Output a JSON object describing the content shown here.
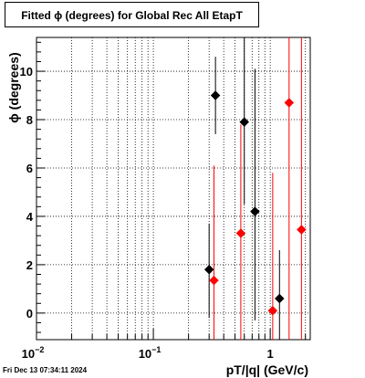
{
  "chart_data": {
    "type": "scatter",
    "title": "Fitted ϕ (degrees) for Global Rec All EtapT",
    "xlabel": "pT/|q| (GeV/c)",
    "ylabel": "ϕ (degrees)",
    "x_scale": "log",
    "xlim": [
      0.01,
      2.2
    ],
    "ylim": [
      -1.1,
      11.4
    ],
    "x_ticks": [
      {
        "value": 0.01,
        "base": "10",
        "exp": "−2"
      },
      {
        "value": 0.1,
        "base": "10",
        "exp": "−1"
      },
      {
        "value": 1,
        "base": "1",
        "exp": ""
      }
    ],
    "y_ticks": [
      0,
      2,
      4,
      6,
      8,
      10
    ],
    "grid": true,
    "series": [
      {
        "color": "#000000",
        "points": [
          {
            "x": 0.3,
            "y": 1.8,
            "ylo": -0.2,
            "yhi": 3.7
          },
          {
            "x": 0.34,
            "y": 9.0,
            "ylo": 7.4,
            "yhi": 10.6
          },
          {
            "x": 0.6,
            "y": 7.9,
            "ylo": 4.5,
            "yhi": 11.4
          },
          {
            "x": 0.74,
            "y": 4.2,
            "ylo": -0.3,
            "yhi": 10.1
          },
          {
            "x": 1.2,
            "y": 0.6,
            "ylo": -1.1,
            "yhi": 2.6
          }
        ]
      },
      {
        "color": "#ff0000",
        "points": [
          {
            "x": 0.33,
            "y": 1.35,
            "ylo": -1.1,
            "yhi": 6.1
          },
          {
            "x": 0.56,
            "y": 3.3,
            "ylo": -1.1,
            "yhi": 7.8
          },
          {
            "x": 1.05,
            "y": 0.1,
            "ylo": -1.1,
            "yhi": 5.8
          },
          {
            "x": 1.45,
            "y": 8.7,
            "ylo": -1.1,
            "yhi": 11.4
          },
          {
            "x": 1.85,
            "y": 3.45,
            "ylo": -1.1,
            "yhi": 11.4
          }
        ]
      }
    ]
  },
  "footer": {
    "timestamp": "Fri Dec 13 07:34:11 2024"
  }
}
